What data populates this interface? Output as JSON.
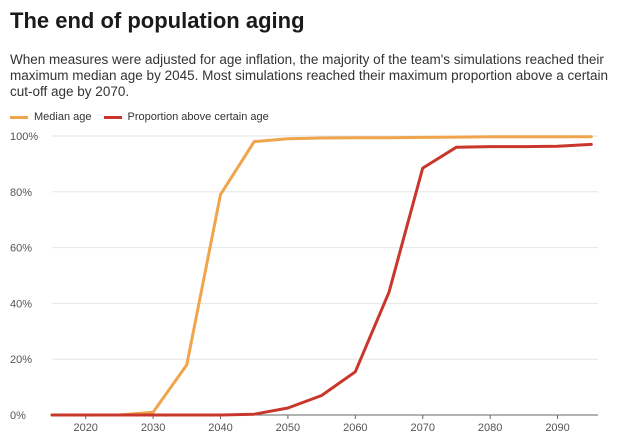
{
  "chart_data": {
    "type": "line",
    "title": "The end of population aging",
    "subtitle": "When measures were adjusted for age inflation, the majority of the team's simulations reached their maximum median age by 2045. Most simulations reached their maximum proportion above a certain cut-off age by 2070.",
    "xlabel": "",
    "ylabel": "",
    "xlim": [
      2015,
      2096
    ],
    "ylim": [
      0,
      100
    ],
    "x_ticks": [
      2020,
      2030,
      2040,
      2050,
      2060,
      2070,
      2080,
      2090
    ],
    "y_ticks": [
      {
        "value": 0,
        "label": "0%"
      },
      {
        "value": 20,
        "label": "20%"
      },
      {
        "value": 40,
        "label": "40%"
      },
      {
        "value": 60,
        "label": "60%"
      },
      {
        "value": 80,
        "label": "80%"
      },
      {
        "value": 100,
        "label": "100%"
      }
    ],
    "grid": true,
    "legend_position": "top-left",
    "series": [
      {
        "name": "Median age",
        "color": "#f0a44b",
        "points": [
          [
            2015,
            0
          ],
          [
            2020,
            0
          ],
          [
            2025,
            0
          ],
          [
            2030,
            1
          ],
          [
            2035,
            18
          ],
          [
            2040,
            79
          ],
          [
            2045,
            98
          ],
          [
            2050,
            99
          ],
          [
            2055,
            99.3
          ],
          [
            2060,
            99.4
          ],
          [
            2065,
            99.4
          ],
          [
            2070,
            99.5
          ],
          [
            2075,
            99.6
          ],
          [
            2080,
            99.7
          ],
          [
            2085,
            99.7
          ],
          [
            2090,
            99.7
          ],
          [
            2095,
            99.7
          ]
        ]
      },
      {
        "name": "Proportion above certain age",
        "color": "#c9372c",
        "points": [
          [
            2015,
            0
          ],
          [
            2020,
            0
          ],
          [
            2025,
            0
          ],
          [
            2030,
            0
          ],
          [
            2035,
            0
          ],
          [
            2040,
            0
          ],
          [
            2045,
            0.3
          ],
          [
            2050,
            2.5
          ],
          [
            2055,
            7
          ],
          [
            2060,
            15.5
          ],
          [
            2065,
            44
          ],
          [
            2070,
            88.5
          ],
          [
            2075,
            96
          ],
          [
            2080,
            96.2
          ],
          [
            2085,
            96.2
          ],
          [
            2090,
            96.3
          ],
          [
            2095,
            97
          ]
        ]
      }
    ]
  }
}
